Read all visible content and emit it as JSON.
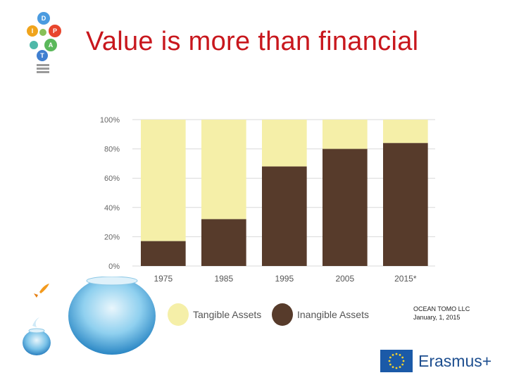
{
  "slide": {
    "title": "Value is more than financial",
    "source_line1": "OCEAN TOMO LLC",
    "source_line2": "January, 1, 2015",
    "erasmus_label": "Erasmus+",
    "logo_letters": [
      "D",
      "I",
      "P",
      "A",
      "T"
    ]
  },
  "legend": {
    "tangible": "Tangible Assets",
    "intangible": "Inangible Assets"
  },
  "colors": {
    "title": "#c8171d",
    "tangible": "#f5efa8",
    "intangible": "#573b2b",
    "eu_blue": "#1b5aa8",
    "eu_star": "#f8d52a"
  },
  "chart_data": {
    "type": "bar",
    "stacked": true,
    "categories": [
      "1975",
      "1985",
      "1995",
      "2005",
      "2015*"
    ],
    "series": [
      {
        "name": "Inangible Assets",
        "values": [
          17,
          32,
          68,
          80,
          84
        ]
      },
      {
        "name": "Tangible Assets",
        "values": [
          83,
          68,
          32,
          20,
          16
        ]
      }
    ],
    "y_ticks": [
      "0%",
      "20%",
      "40%",
      "60%",
      "80%",
      "100%"
    ],
    "ylim": [
      0,
      100
    ],
    "grid": true,
    "legend_position": "bottom"
  }
}
